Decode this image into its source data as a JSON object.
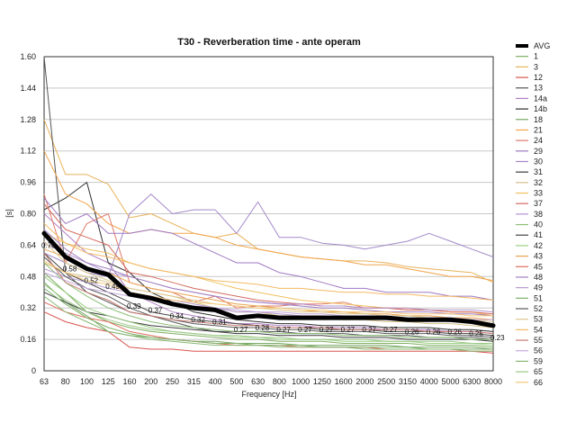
{
  "chart_data": {
    "type": "line",
    "title": "T30 - Reverberation time - ante operam",
    "xlabel": "Frequency [Hz]",
    "ylabel": "[s]",
    "ylim": [
      0,
      1.6
    ],
    "yticks": [
      "0",
      "0.16",
      "0.32",
      "0.48",
      "0.64",
      "0.80",
      "0.96",
      "1.12",
      "1.28",
      "1.44",
      "1.60"
    ],
    "grid": "horizontal",
    "legend": "right",
    "categories": [
      "63",
      "80",
      "100",
      "125",
      "160",
      "200",
      "250",
      "315",
      "400",
      "500",
      "630",
      "800",
      "1000",
      "1250",
      "1600",
      "2000",
      "2500",
      "3150",
      "4000",
      "5000",
      "6300",
      "8000"
    ],
    "avg": {
      "name": "AVG",
      "color": "#000000",
      "values": [
        0.7,
        0.58,
        0.52,
        0.49,
        0.39,
        0.37,
        0.34,
        0.32,
        0.31,
        0.27,
        0.28,
        0.27,
        0.27,
        0.27,
        0.27,
        0.27,
        0.27,
        0.26,
        0.26,
        0.26,
        0.25,
        0.23
      ],
      "labels": [
        "0.70",
        "0.58",
        "0.52",
        "0.49",
        "0.39",
        "0.37",
        "0.34",
        "0.32",
        "0.31",
        "0.27",
        "0.28",
        "0.27",
        "0.27",
        "0.27",
        "0.27",
        "0.27",
        "0.27",
        "0.26",
        "0.26",
        "0.26",
        "0.25",
        "0.23"
      ]
    },
    "series": [
      {
        "name": "1",
        "color": "#7fae62",
        "values": [
          0.5,
          0.4,
          0.3,
          0.25,
          0.22,
          0.2,
          0.19,
          0.18,
          0.17,
          0.16,
          0.16,
          0.15,
          0.15,
          0.15,
          0.14,
          0.14,
          0.14,
          0.14,
          0.13,
          0.13,
          0.13,
          0.12
        ]
      },
      {
        "name": "3",
        "color": "#e8b25a",
        "values": [
          1.28,
          1.0,
          1.0,
          0.95,
          0.78,
          0.8,
          0.75,
          0.7,
          0.68,
          0.7,
          0.62,
          0.6,
          0.58,
          0.57,
          0.56,
          0.56,
          0.55,
          0.53,
          0.52,
          0.51,
          0.5,
          0.45
        ]
      },
      {
        "name": "12",
        "color": "#d9534f",
        "values": [
          0.3,
          0.25,
          0.22,
          0.2,
          0.12,
          0.11,
          0.11,
          0.1,
          0.1,
          0.1,
          0.1,
          0.1,
          0.1,
          0.1,
          0.1,
          0.1,
          0.1,
          0.1,
          0.1,
          0.1,
          0.1,
          0.09
        ]
      },
      {
        "name": "13",
        "color": "#555555",
        "values": [
          1.6,
          0.5,
          0.4,
          0.35,
          0.3,
          0.28,
          0.25,
          0.22,
          0.2,
          0.2,
          0.2,
          0.2,
          0.19,
          0.19,
          0.19,
          0.18,
          0.18,
          0.18,
          0.17,
          0.17,
          0.17,
          0.16
        ]
      },
      {
        "name": "14a",
        "color": "#b07fc4",
        "values": [
          0.8,
          0.7,
          0.6,
          0.55,
          0.4,
          0.35,
          0.3,
          0.28,
          0.26,
          0.24,
          0.24,
          0.23,
          0.23,
          0.22,
          0.22,
          0.22,
          0.21,
          0.21,
          0.21,
          0.2,
          0.2,
          0.19
        ]
      },
      {
        "name": "14b",
        "color": "#2e2e2e",
        "values": [
          0.82,
          0.88,
          0.96,
          0.55,
          0.5,
          0.4,
          0.35,
          0.3,
          0.28,
          0.26,
          0.25,
          0.24,
          0.24,
          0.23,
          0.23,
          0.23,
          0.22,
          0.22,
          0.22,
          0.21,
          0.21,
          0.2
        ]
      },
      {
        "name": "18",
        "color": "#77a865",
        "values": [
          0.45,
          0.35,
          0.28,
          0.2,
          0.18,
          0.17,
          0.16,
          0.15,
          0.15,
          0.14,
          0.14,
          0.14,
          0.13,
          0.13,
          0.13,
          0.13,
          0.13,
          0.12,
          0.12,
          0.12,
          0.12,
          0.11
        ]
      },
      {
        "name": "21",
        "color": "#f2a34a",
        "values": [
          1.12,
          0.9,
          0.85,
          0.75,
          0.7,
          0.72,
          0.7,
          0.7,
          0.68,
          0.64,
          0.62,
          0.6,
          0.58,
          0.57,
          0.56,
          0.54,
          0.54,
          0.52,
          0.5,
          0.48,
          0.48,
          0.46
        ]
      },
      {
        "name": "24",
        "color": "#e07a6a",
        "values": [
          0.9,
          0.55,
          0.75,
          0.8,
          0.45,
          0.42,
          0.4,
          0.35,
          0.38,
          0.32,
          0.33,
          0.33,
          0.34,
          0.34,
          0.35,
          0.32,
          0.32,
          0.31,
          0.31,
          0.3,
          0.3,
          0.28
        ]
      },
      {
        "name": "29",
        "color": "#9f78c2",
        "values": [
          0.88,
          0.75,
          0.8,
          0.7,
          0.7,
          0.72,
          0.7,
          0.65,
          0.6,
          0.55,
          0.55,
          0.5,
          0.48,
          0.45,
          0.42,
          0.42,
          0.4,
          0.4,
          0.4,
          0.38,
          0.38,
          0.36
        ]
      },
      {
        "name": "30",
        "color": "#a388c9",
        "values": [
          0.6,
          0.55,
          0.5,
          0.48,
          0.8,
          0.9,
          0.8,
          0.82,
          0.82,
          0.7,
          0.86,
          0.68,
          0.68,
          0.65,
          0.64,
          0.62,
          0.64,
          0.66,
          0.7,
          0.66,
          0.62,
          0.58
        ]
      },
      {
        "name": "31",
        "color": "#3a3a3a",
        "values": [
          0.4,
          0.35,
          0.3,
          0.28,
          0.25,
          0.23,
          0.22,
          0.21,
          0.2,
          0.19,
          0.19,
          0.18,
          0.18,
          0.18,
          0.17,
          0.17,
          0.17,
          0.16,
          0.16,
          0.16,
          0.16,
          0.15
        ]
      },
      {
        "name": "32",
        "color": "#d7c089",
        "values": [
          0.55,
          0.5,
          0.48,
          0.45,
          0.42,
          0.4,
          0.38,
          0.35,
          0.32,
          0.3,
          0.3,
          0.28,
          0.28,
          0.27,
          0.26,
          0.26,
          0.25,
          0.25,
          0.24,
          0.24,
          0.23,
          0.22
        ]
      },
      {
        "name": "33",
        "color": "#f0c060",
        "values": [
          0.7,
          0.65,
          0.62,
          0.6,
          0.55,
          0.52,
          0.5,
          0.48,
          0.45,
          0.42,
          0.4,
          0.38,
          0.36,
          0.35,
          0.34,
          0.33,
          0.32,
          0.32,
          0.31,
          0.3,
          0.3,
          0.28
        ]
      },
      {
        "name": "37",
        "color": "#d46a5e",
        "values": [
          0.85,
          0.72,
          0.68,
          0.64,
          0.5,
          0.48,
          0.45,
          0.42,
          0.4,
          0.38,
          0.36,
          0.35,
          0.34,
          0.33,
          0.33,
          0.32,
          0.32,
          0.31,
          0.31,
          0.3,
          0.3,
          0.29
        ]
      },
      {
        "name": "38",
        "color": "#b495d1",
        "values": [
          0.65,
          0.6,
          0.55,
          0.5,
          0.48,
          0.45,
          0.42,
          0.4,
          0.38,
          0.36,
          0.35,
          0.34,
          0.34,
          0.33,
          0.33,
          0.32,
          0.32,
          0.32,
          0.31,
          0.31,
          0.31,
          0.3
        ]
      },
      {
        "name": "40",
        "color": "#8cbf77",
        "values": [
          0.55,
          0.45,
          0.38,
          0.32,
          0.28,
          0.25,
          0.23,
          0.22,
          0.21,
          0.2,
          0.2,
          0.19,
          0.19,
          0.19,
          0.18,
          0.18,
          0.18,
          0.17,
          0.17,
          0.17,
          0.16,
          0.16
        ]
      },
      {
        "name": "41",
        "color": "#444444",
        "values": [
          0.6,
          0.5,
          0.45,
          0.4,
          0.35,
          0.3,
          0.28,
          0.26,
          0.25,
          0.24,
          0.23,
          0.22,
          0.22,
          0.21,
          0.21,
          0.21,
          0.2,
          0.2,
          0.2,
          0.19,
          0.19,
          0.18
        ]
      },
      {
        "name": "42",
        "color": "#9ccf83",
        "values": [
          0.48,
          0.4,
          0.32,
          0.28,
          0.25,
          0.22,
          0.2,
          0.19,
          0.18,
          0.17,
          0.17,
          0.16,
          0.16,
          0.16,
          0.15,
          0.15,
          0.15,
          0.15,
          0.14,
          0.14,
          0.14,
          0.13
        ]
      },
      {
        "name": "43",
        "color": "#eaa450",
        "values": [
          0.62,
          0.58,
          0.52,
          0.5,
          0.45,
          0.42,
          0.4,
          0.38,
          0.36,
          0.34,
          0.33,
          0.32,
          0.31,
          0.3,
          0.3,
          0.29,
          0.29,
          0.28,
          0.28,
          0.27,
          0.27,
          0.26
        ]
      },
      {
        "name": "45",
        "color": "#e06c5c",
        "values": [
          0.35,
          0.3,
          0.27,
          0.25,
          0.2,
          0.18,
          0.16,
          0.15,
          0.14,
          0.13,
          0.13,
          0.13,
          0.12,
          0.12,
          0.12,
          0.12,
          0.11,
          0.11,
          0.11,
          0.11,
          0.1,
          0.1
        ]
      },
      {
        "name": "48",
        "color": "#a07fc0",
        "values": [
          0.72,
          0.62,
          0.55,
          0.52,
          0.48,
          0.45,
          0.42,
          0.4,
          0.38,
          0.36,
          0.35,
          0.34,
          0.33,
          0.32,
          0.32,
          0.31,
          0.3,
          0.3,
          0.3,
          0.29,
          0.29,
          0.28
        ]
      },
      {
        "name": "49",
        "color": "#b89ad0",
        "values": [
          0.52,
          0.48,
          0.45,
          0.42,
          0.4,
          0.38,
          0.36,
          0.34,
          0.32,
          0.3,
          0.3,
          0.29,
          0.28,
          0.28,
          0.27,
          0.27,
          0.26,
          0.26,
          0.26,
          0.25,
          0.25,
          0.24
        ]
      },
      {
        "name": "51",
        "color": "#7cb068",
        "values": [
          0.42,
          0.34,
          0.27,
          0.22,
          0.19,
          0.17,
          0.16,
          0.15,
          0.14,
          0.14,
          0.13,
          0.13,
          0.13,
          0.12,
          0.12,
          0.12,
          0.12,
          0.12,
          0.11,
          0.11,
          0.11,
          0.11
        ]
      },
      {
        "name": "52",
        "color": "#5a5a5a",
        "values": [
          0.58,
          0.48,
          0.42,
          0.38,
          0.32,
          0.28,
          0.26,
          0.24,
          0.23,
          0.22,
          0.22,
          0.21,
          0.21,
          0.2,
          0.2,
          0.2,
          0.19,
          0.19,
          0.19,
          0.18,
          0.18,
          0.17
        ]
      },
      {
        "name": "53",
        "color": "#dcc88f",
        "values": [
          0.66,
          0.55,
          0.5,
          0.46,
          0.42,
          0.4,
          0.38,
          0.36,
          0.34,
          0.33,
          0.32,
          0.31,
          0.3,
          0.3,
          0.29,
          0.29,
          0.28,
          0.28,
          0.27,
          0.27,
          0.26,
          0.25
        ]
      },
      {
        "name": "54",
        "color": "#f3b963",
        "values": [
          0.75,
          0.65,
          0.6,
          0.58,
          0.55,
          0.52,
          0.5,
          0.48,
          0.46,
          0.45,
          0.44,
          0.42,
          0.42,
          0.41,
          0.4,
          0.4,
          0.39,
          0.39,
          0.38,
          0.38,
          0.37,
          0.36
        ]
      },
      {
        "name": "55",
        "color": "#c87a70",
        "values": [
          0.6,
          0.45,
          0.4,
          0.36,
          0.3,
          0.28,
          0.26,
          0.25,
          0.24,
          0.23,
          0.23,
          0.22,
          0.22,
          0.22,
          0.21,
          0.21,
          0.21,
          0.21,
          0.2,
          0.2,
          0.2,
          0.19
        ]
      },
      {
        "name": "56",
        "color": "#c4a9dc",
        "values": [
          0.5,
          0.46,
          0.42,
          0.4,
          0.38,
          0.36,
          0.34,
          0.33,
          0.32,
          0.31,
          0.3,
          0.3,
          0.29,
          0.29,
          0.28,
          0.28,
          0.28,
          0.27,
          0.27,
          0.27,
          0.26,
          0.26
        ]
      },
      {
        "name": "59",
        "color": "#88b874",
        "values": [
          0.38,
          0.3,
          0.25,
          0.2,
          0.18,
          0.16,
          0.15,
          0.14,
          0.13,
          0.13,
          0.13,
          0.12,
          0.12,
          0.12,
          0.12,
          0.11,
          0.11,
          0.11,
          0.11,
          0.11,
          0.1,
          0.1
        ]
      },
      {
        "name": "65",
        "color": "#9bc987",
        "values": [
          0.44,
          0.36,
          0.3,
          0.26,
          0.23,
          0.21,
          0.2,
          0.19,
          0.18,
          0.18,
          0.17,
          0.17,
          0.16,
          0.16,
          0.16,
          0.16,
          0.15,
          0.15,
          0.15,
          0.15,
          0.14,
          0.14
        ]
      },
      {
        "name": "66",
        "color": "#f5c878",
        "values": [
          0.56,
          0.5,
          0.46,
          0.44,
          0.4,
          0.38,
          0.36,
          0.35,
          0.34,
          0.33,
          0.32,
          0.32,
          0.31,
          0.31,
          0.3,
          0.3,
          0.3,
          0.29,
          0.29,
          0.29,
          0.28,
          0.28
        ]
      }
    ]
  }
}
